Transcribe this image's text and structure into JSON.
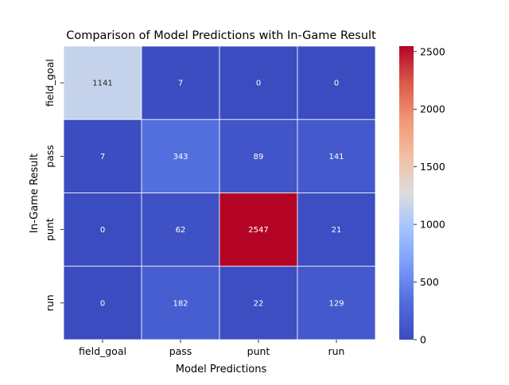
{
  "chart_data": {
    "type": "heatmap",
    "title": "Comparison of Model Predictions with In-Game Result",
    "xlabel": "Model Predictions",
    "ylabel": "In-Game Result",
    "x_categories": [
      "field_goal",
      "pass",
      "punt",
      "run"
    ],
    "y_categories": [
      "field_goal",
      "pass",
      "punt",
      "run"
    ],
    "values": [
      [
        1141,
        7,
        0,
        0
      ],
      [
        7,
        343,
        89,
        141
      ],
      [
        0,
        62,
        2547,
        21
      ],
      [
        0,
        182,
        22,
        129
      ]
    ],
    "colorbar": {
      "min": 0,
      "max": 2547,
      "ticks": [
        0,
        500,
        1000,
        1500,
        2000,
        2500
      ],
      "colormap": "coolwarm"
    }
  }
}
